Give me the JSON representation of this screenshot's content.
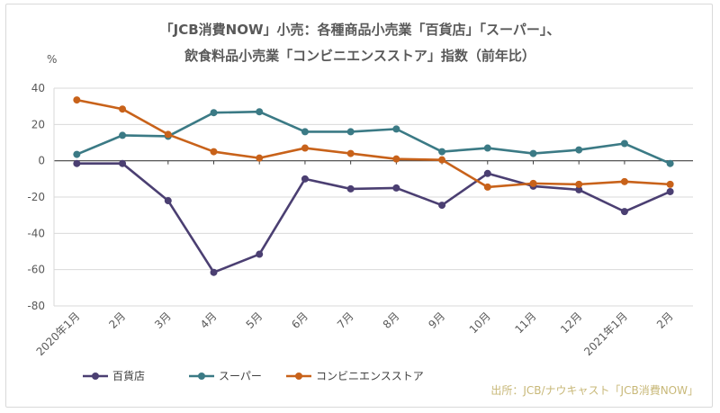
{
  "chart_data": {
    "type": "line",
    "title_lines": [
      "「JCB消費NOW」小売：各種商品小売業「百貨店」「スーパー」、",
      "飲食料品小売業「コンビニエンスストア」指数（前年比）"
    ],
    "ylabel": "%",
    "ylim": [
      -80,
      40
    ],
    "yticks": [
      40,
      20,
      0,
      -20,
      -40,
      -60,
      -80
    ],
    "categories": [
      "2020年1月",
      "2月",
      "3月",
      "4月",
      "5月",
      "6月",
      "7月",
      "8月",
      "9月",
      "10月",
      "11月",
      "12月",
      "2021年1月",
      "2月"
    ],
    "grid": true,
    "legend_position": "bottom-left",
    "series": [
      {
        "name": "百貨店",
        "color": "#4b3f72",
        "values": [
          -1.5,
          -1.5,
          -22,
          -61.5,
          -51.5,
          -10,
          -15.5,
          -15,
          -24.5,
          -7,
          -14,
          -16,
          -28,
          -17
        ]
      },
      {
        "name": "スーパー",
        "color": "#3b7a85",
        "values": [
          3.5,
          14,
          13.5,
          26.5,
          27,
          16,
          16,
          17.5,
          5,
          7,
          4,
          6,
          9.5,
          -1.5
        ]
      },
      {
        "name": "コンビニエンスストア",
        "color": "#c8621a",
        "values": [
          33.5,
          28.5,
          14.5,
          5,
          1.5,
          7,
          4,
          1,
          0.5,
          -14.5,
          -12.5,
          -13,
          -11.5,
          -13
        ]
      }
    ],
    "source": "出所：JCB/ナウキャスト「JCB消費NOW」"
  }
}
